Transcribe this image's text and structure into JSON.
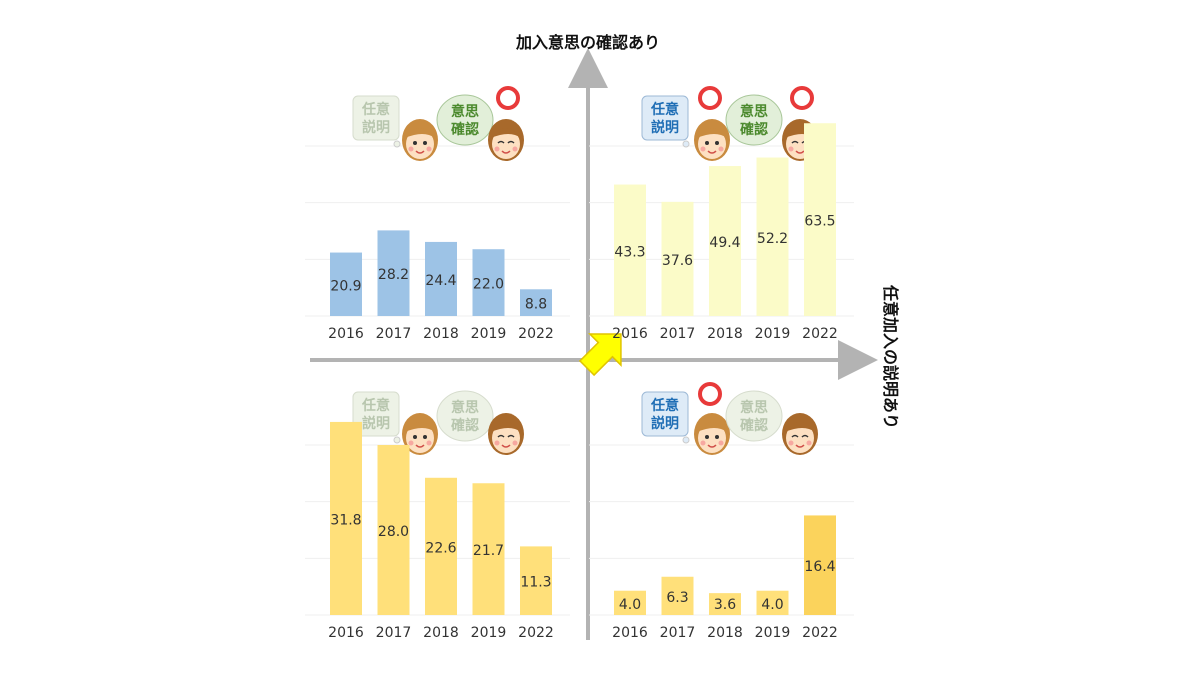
{
  "axes": {
    "vertical_title": "加入意思の確認あり",
    "horizontal_title": "任意加入の説明あり"
  },
  "bubbles": {
    "explanation": [
      "任意",
      "説明"
    ],
    "confirmation": [
      "意思",
      "確認"
    ]
  },
  "colors": {
    "axis": "#b3b3b3",
    "arrow": "#ffff00",
    "circle": "#e83a3a",
    "blue_bar": "#9dc3e6",
    "pale_bar": "#fbfbc8",
    "gold_bar": "#ffe07a",
    "gold_bar_deep": "#fbd35c",
    "explain_bubble_active": "#deebf7",
    "explain_text_active": "#1f6eb5",
    "confirm_bubble_active": "#e2efd9",
    "confirm_text_active": "#4c8a2e",
    "bubble_inactive": "#edf2e6",
    "bubble_text_inactive": "#b8c6ae"
  },
  "chart_data": [
    {
      "type": "bar",
      "quadrant": "top-left",
      "categories": [
        "2016",
        "2017",
        "2018",
        "2019",
        "2022"
      ],
      "values": [
        20.9,
        28.2,
        24.4,
        22.0,
        8.8
      ],
      "value_labels": [
        "20.9",
        "28.2",
        "24.4",
        "22.0",
        "8.8"
      ],
      "explanation": false,
      "confirmation": true,
      "bar_color": "blue_bar",
      "ylim": [
        0,
        70
      ]
    },
    {
      "type": "bar",
      "quadrant": "top-right",
      "categories": [
        "2016",
        "2017",
        "2018",
        "2019",
        "2022"
      ],
      "values": [
        43.3,
        37.6,
        49.4,
        52.2,
        63.5
      ],
      "value_labels": [
        "43.3",
        "37.6",
        "49.4",
        "52.2",
        "63.5"
      ],
      "explanation": true,
      "confirmation": true,
      "bar_color": "pale_bar",
      "ylim": [
        0,
        70
      ]
    },
    {
      "type": "bar",
      "quadrant": "bottom-left",
      "categories": [
        "2016",
        "2017",
        "2018",
        "2019",
        "2022"
      ],
      "values": [
        31.8,
        28.0,
        22.6,
        21.7,
        11.3
      ],
      "value_labels": [
        "31.8",
        "28.0",
        "22.6",
        "21.7",
        "11.3"
      ],
      "explanation": false,
      "confirmation": false,
      "bar_color": "gold_bar",
      "ylim": [
        0,
        35
      ]
    },
    {
      "type": "bar",
      "quadrant": "bottom-right",
      "categories": [
        "2016",
        "2017",
        "2018",
        "2019",
        "2022"
      ],
      "values": [
        4.0,
        6.3,
        3.6,
        4.0,
        16.4
      ],
      "value_labels": [
        "4.0",
        "6.3",
        "3.6",
        "4.0",
        "16.4"
      ],
      "explanation": true,
      "confirmation": false,
      "bar_color": "gold_bar",
      "highlight_last": true,
      "ylim": [
        0,
        35
      ]
    }
  ]
}
